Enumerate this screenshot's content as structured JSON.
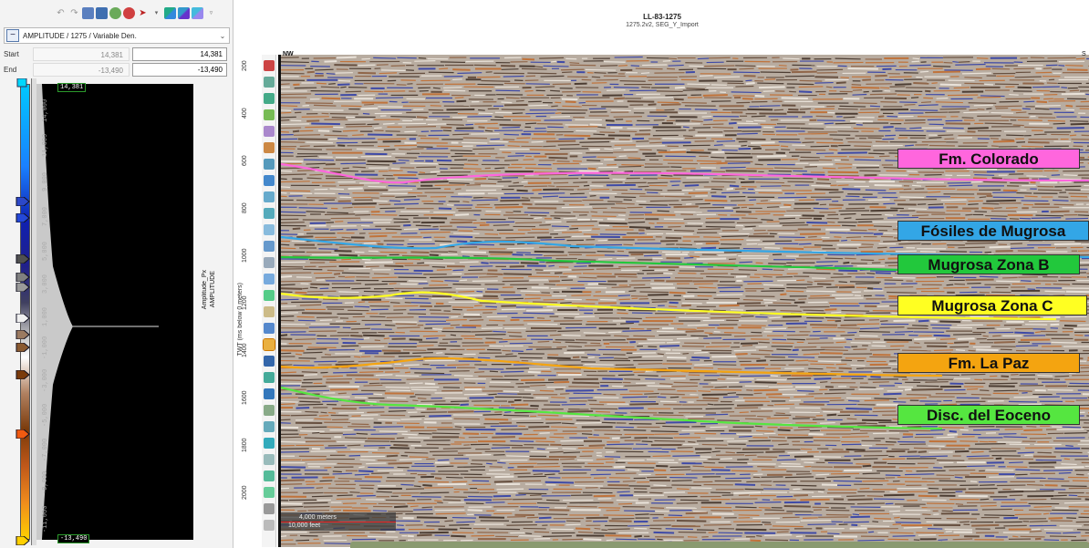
{
  "layer_panel": {
    "layer_name": "AMPLITUDE / 1275 / Variable Den.",
    "collapse_icon": "minus-icon",
    "dropdown_icon": "chevron-down-icon",
    "start_label": "Start",
    "start_old": "14,381",
    "start_value": "14,381",
    "end_label": "End",
    "end_old": "-13,490",
    "end_value": "-13,490",
    "max_box": "14,381",
    "min_box": "-13,490",
    "ticks": [
      "14,000",
      "11,000",
      "9,000",
      "7,000",
      "5,000",
      "3,000",
      "1,000",
      "-1,000",
      "-3,000",
      "-5,000",
      "-7,000",
      "-9,000",
      "-11,000"
    ],
    "side_label_1": "Amplitude_Px",
    "side_label_2": "AMPLITUDE"
  },
  "view": {
    "title": "LL-83-1275",
    "subtitle": "1275.2v2, SEG_Y_Import",
    "depth_label": "TWT (ms below 0 meters)",
    "depth_ticks": [
      "200",
      "400",
      "600",
      "800",
      "1000",
      "1200",
      "1400",
      "1600",
      "1800",
      "2000"
    ],
    "left_dir": "NW",
    "right_dir": "S",
    "scale_meters": "4,000 meters",
    "scale_feet": "10,000 feet"
  },
  "horizons": [
    {
      "label": "Fm. Colorado",
      "color": "#ff66dd"
    },
    {
      "label": "Fósiles de Mugrosa",
      "color": "#33a6e6"
    },
    {
      "label": "Mugrosa Zona B",
      "color": "#22c83c"
    },
    {
      "label": "Mugrosa Zona C",
      "color": "#ffff22"
    },
    {
      "label": "Fm. La Paz",
      "color": "#f4a410"
    },
    {
      "label": "Disc. del Eoceno",
      "color": "#55e640"
    }
  ]
}
